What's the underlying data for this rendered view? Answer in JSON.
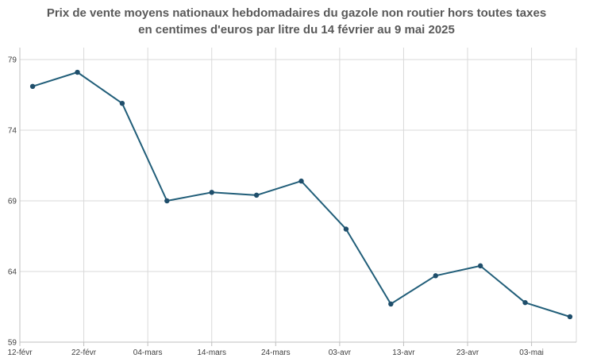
{
  "chart_data": {
    "type": "line",
    "title_line1": "Prix de vente moyens nationaux hebdomadaires du gazole non routier hors toutes taxes",
    "title_line2": "en centimes d'euros par litre du 14 février au 9 mai 2025",
    "xlabel": "",
    "ylabel": "",
    "x_ticks": [
      "12-févr",
      "22-févr",
      "04-mars",
      "14-mars",
      "24-mars",
      "03-avr",
      "13-avr",
      "23-avr",
      "03-mai"
    ],
    "y_ticks": [
      "59",
      "64",
      "69",
      "74",
      "79"
    ],
    "ylim": [
      59,
      79
    ],
    "x_range_days": [
      0,
      87
    ],
    "grid": true,
    "colors": {
      "line": "#215e79",
      "marker": "#1f4e6b",
      "grid": "#d9d9d9",
      "axis": "#bfbfbf"
    },
    "series": [
      {
        "dates": [
          "14-févr",
          "21-févr",
          "28-févr",
          "07-mars",
          "14-mars",
          "21-mars",
          "28-mars",
          "04-avr",
          "11-avr",
          "18-avr",
          "25-avr",
          "02-mai",
          "09-mai"
        ],
        "x_days": [
          2,
          9,
          16,
          23,
          30,
          37,
          44,
          51,
          58,
          65,
          72,
          79,
          86
        ],
        "values": [
          77.1,
          78.1,
          75.9,
          69.0,
          69.6,
          69.4,
          70.4,
          67.0,
          61.7,
          63.7,
          64.4,
          61.8,
          60.8
        ]
      }
    ]
  }
}
